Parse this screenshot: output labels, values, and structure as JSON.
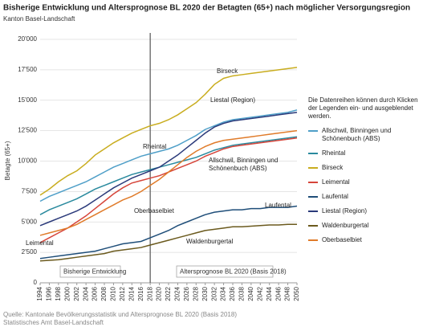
{
  "chart_data": {
    "type": "line",
    "title": "Bisherige Entwicklung und Altersprognose BL 2020 der Betagten (65+) nach möglicher Versorgungsregion",
    "subtitle": "Kanton Basel-Landschaft",
    "y_label": "Betagte (65+)",
    "x": [
      1994,
      1996,
      1998,
      2000,
      2002,
      2004,
      2006,
      2008,
      2010,
      2012,
      2014,
      2016,
      2018,
      2020,
      2022,
      2024,
      2026,
      2028,
      2030,
      2032,
      2034,
      2036,
      2038,
      2040,
      2042,
      2044,
      2046,
      2048,
      2050
    ],
    "xlim": [
      1994,
      2050
    ],
    "xticks": [
      1994,
      1996,
      1998,
      2000,
      2002,
      2004,
      2006,
      2008,
      2010,
      2012,
      2014,
      2016,
      2018,
      2020,
      2022,
      2024,
      2026,
      2028,
      2030,
      2032,
      2034,
      2036,
      2038,
      2040,
      2042,
      2044,
      2046,
      2048,
      2050
    ],
    "ylim": [
      0,
      20000
    ],
    "yticks": [
      0,
      {
        "value": 2500,
        "label": "2'500"
      },
      {
        "value": 5000,
        "label": "5'000"
      },
      {
        "value": 7500,
        "label": "7'500"
      },
      {
        "value": 10000,
        "label": "10'000"
      },
      {
        "value": 12500,
        "label": "12'500"
      },
      {
        "value": 15000,
        "label": "15'000"
      },
      {
        "value": 17500,
        "label": "17'500"
      },
      {
        "value": 20000,
        "label": "20'000"
      }
    ],
    "grid": true,
    "divider_x": 2018,
    "period_labels": [
      "Bisherige Entwicklung",
      "Altersprognose BL 2020 (Basis 2018)"
    ],
    "legend_note": "Die Datenreihen können durch Klicken der Legenden ein- und ausgeblendet werden.",
    "legend_position": "right",
    "series": [
      {
        "name": "Allschwil, Binningen und Schönenbuch (ABS)",
        "color": "#4f9fc8",
        "values": [
          6700,
          7100,
          7400,
          7700,
          8000,
          8300,
          8700,
          9100,
          9500,
          9800,
          10100,
          10400,
          10600,
          10800,
          11000,
          11300,
          11700,
          12100,
          12600,
          12900,
          13200,
          13400,
          13500,
          13600,
          13700,
          13800,
          13900,
          14000,
          14200
        ]
      },
      {
        "name": "Rheintal",
        "color": "#2a8a9e",
        "values": [
          5600,
          6000,
          6300,
          6600,
          6900,
          7300,
          7700,
          8000,
          8300,
          8600,
          8900,
          9100,
          9300,
          9500,
          9700,
          9900,
          10100,
          10300,
          10600,
          10900,
          11100,
          11300,
          11400,
          11500,
          11600,
          11700,
          11800,
          11900,
          12000
        ]
      },
      {
        "name": "Birseck",
        "color": "#c9ad1f",
        "values": [
          7200,
          7700,
          8300,
          8800,
          9200,
          9800,
          10500,
          11000,
          11500,
          11900,
          12300,
          12600,
          12900,
          13100,
          13400,
          13800,
          14300,
          14800,
          15500,
          16300,
          16800,
          17000,
          17100,
          17200,
          17300,
          17400,
          17500,
          17600,
          17700
        ]
      },
      {
        "name": "Leimental",
        "color": "#d6453a",
        "values": [
          3300,
          3700,
          4100,
          4500,
          5000,
          5500,
          6100,
          6700,
          7300,
          7800,
          8200,
          8400,
          8600,
          8800,
          9100,
          9400,
          9700,
          10000,
          10400,
          10700,
          11000,
          11200,
          11300,
          11400,
          11500,
          11600,
          11700,
          11800,
          11900
        ]
      },
      {
        "name": "Laufental",
        "color": "#1f4e79",
        "values": [
          2000,
          2100,
          2200,
          2300,
          2400,
          2500,
          2600,
          2800,
          3000,
          3200,
          3300,
          3400,
          3700,
          4000,
          4300,
          4700,
          5000,
          5300,
          5600,
          5800,
          5900,
          6000,
          6000,
          6100,
          6100,
          6200,
          6200,
          6200,
          6300
        ]
      },
      {
        "name": "Liestal (Region)",
        "color": "#2b3a7a",
        "values": [
          4700,
          5000,
          5300,
          5600,
          5900,
          6300,
          6800,
          7300,
          7800,
          8200,
          8600,
          8900,
          9200,
          9500,
          10000,
          10500,
          11100,
          11700,
          12300,
          12800,
          13100,
          13300,
          13400,
          13500,
          13600,
          13700,
          13800,
          13900,
          14000
        ]
      },
      {
        "name": "Waldenburgertal",
        "color": "#6b5a1e",
        "values": [
          1800,
          1850,
          1900,
          2000,
          2100,
          2200,
          2300,
          2400,
          2600,
          2700,
          2800,
          2900,
          3100,
          3300,
          3500,
          3700,
          3900,
          4100,
          4300,
          4400,
          4500,
          4600,
          4600,
          4650,
          4700,
          4750,
          4750,
          4800,
          4800
        ]
      },
      {
        "name": "Oberbaselbiet",
        "color": "#e07b2a",
        "values": [
          3900,
          4100,
          4300,
          4500,
          4800,
          5200,
          5600,
          6000,
          6400,
          6800,
          7100,
          7500,
          8000,
          8500,
          9100,
          9700,
          10300,
          10800,
          11200,
          11500,
          11700,
          11800,
          11900,
          12000,
          12100,
          12200,
          12300,
          12400,
          12500
        ]
      }
    ],
    "source": [
      "Quelle: Kantonale Bevölkerungsstatistik und Altersprognose BL 2020 (Basis 2018)",
      "Statistisches Amt Basel-Landschaft"
    ]
  }
}
